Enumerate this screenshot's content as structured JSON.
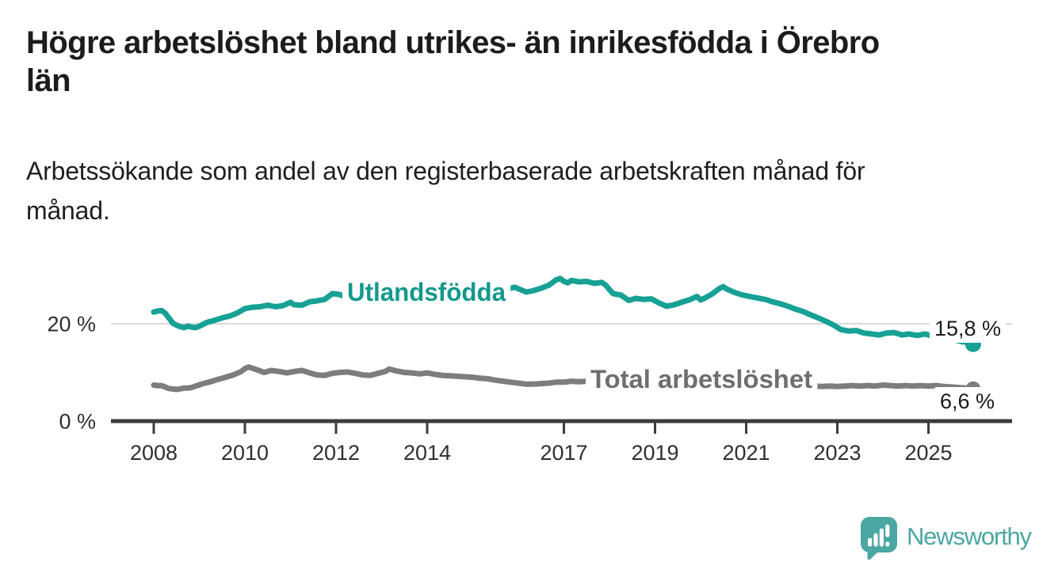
{
  "chart_data": {
    "type": "line",
    "title": "Högre arbetslöshet bland utrikes- än inrikesfödda i Örebro län",
    "title_lines": [
      "Högre arbetslöshet bland utrikes- än inrikesfödda i Örebro",
      "län"
    ],
    "subtitle": "Arbetssökande som andel av den registerbaserade arbetskraften månad för månad.",
    "subtitle_lines": [
      "Arbetssökande som andel av den registerbaserade arbetskraften månad för",
      "månad."
    ],
    "legend": "inline-labels",
    "grid": "horizontal-only",
    "axis_color": "#3c3c3c",
    "grid_color": "#dadada",
    "text_color": "#2f2f2f",
    "value_label_color": "#1a1a1a",
    "x_axis": {
      "unit": "year",
      "range": [
        2007.05,
        2026.9
      ],
      "ticks": [
        2008,
        2010,
        2012,
        2014,
        2017,
        2019,
        2021,
        2023,
        2025
      ]
    },
    "y_axis": {
      "unit": "%",
      "range": [
        0,
        33
      ],
      "ticks": [
        {
          "value": 0,
          "label": "0 %"
        },
        {
          "value": 20,
          "label": "20 %"
        }
      ],
      "gridlines": [
        20
      ]
    },
    "series": [
      {
        "name": "Utlandsfödda",
        "color": "#17a195",
        "label_color": "#14988d",
        "end_value": 15.8,
        "end_label": "15,8 %",
        "points": [
          [
            2008.0,
            22.4
          ],
          [
            2008.08,
            22.6
          ],
          [
            2008.17,
            22.7
          ],
          [
            2008.25,
            22.2
          ],
          [
            2008.33,
            21.2
          ],
          [
            2008.42,
            20.1
          ],
          [
            2008.5,
            19.7
          ],
          [
            2008.58,
            19.4
          ],
          [
            2008.67,
            19.2
          ],
          [
            2008.75,
            19.5
          ],
          [
            2008.83,
            19.3
          ],
          [
            2008.92,
            19.2
          ],
          [
            2009.0,
            19.5
          ],
          [
            2009.17,
            20.3
          ],
          [
            2009.33,
            20.7
          ],
          [
            2009.5,
            21.2
          ],
          [
            2009.67,
            21.6
          ],
          [
            2009.83,
            22.2
          ],
          [
            2010.0,
            23.1
          ],
          [
            2010.17,
            23.4
          ],
          [
            2010.33,
            23.5
          ],
          [
            2010.5,
            23.8
          ],
          [
            2010.67,
            23.5
          ],
          [
            2010.83,
            23.7
          ],
          [
            2011.0,
            24.4
          ],
          [
            2011.08,
            23.9
          ],
          [
            2011.25,
            23.8
          ],
          [
            2011.42,
            24.5
          ],
          [
            2011.58,
            24.7
          ],
          [
            2011.75,
            25.0
          ],
          [
            2011.92,
            26.2
          ],
          [
            2012.08,
            26.0
          ],
          [
            2012.25,
            25.3
          ],
          [
            2012.42,
            24.9
          ],
          [
            2012.58,
            24.8
          ],
          [
            2012.75,
            25.1
          ],
          [
            2012.92,
            25.7
          ],
          [
            2013.08,
            25.8
          ],
          [
            2013.25,
            25.4
          ],
          [
            2013.42,
            25.6
          ],
          [
            2013.58,
            25.8
          ],
          [
            2013.75,
            26.0
          ],
          [
            2013.92,
            26.1
          ],
          [
            2014.08,
            25.9
          ],
          [
            2014.25,
            26.0
          ],
          [
            2014.42,
            26.2
          ],
          [
            2014.58,
            26.3
          ],
          [
            2014.75,
            26.4
          ],
          [
            2014.92,
            26.6
          ],
          [
            2015.08,
            26.4
          ],
          [
            2015.25,
            26.3
          ],
          [
            2015.42,
            26.6
          ],
          [
            2015.58,
            26.8
          ],
          [
            2015.75,
            27.1
          ],
          [
            2015.92,
            27.5
          ],
          [
            2016.08,
            26.9
          ],
          [
            2016.17,
            26.5
          ],
          [
            2016.33,
            26.8
          ],
          [
            2016.5,
            27.3
          ],
          [
            2016.67,
            27.9
          ],
          [
            2016.83,
            29.0
          ],
          [
            2016.92,
            29.3
          ],
          [
            2017.0,
            28.7
          ],
          [
            2017.08,
            28.4
          ],
          [
            2017.17,
            28.9
          ],
          [
            2017.33,
            28.6
          ],
          [
            2017.5,
            28.7
          ],
          [
            2017.67,
            28.3
          ],
          [
            2017.83,
            28.5
          ],
          [
            2017.92,
            27.9
          ],
          [
            2018.0,
            27.0
          ],
          [
            2018.08,
            26.2
          ],
          [
            2018.25,
            25.9
          ],
          [
            2018.42,
            24.8
          ],
          [
            2018.58,
            25.2
          ],
          [
            2018.75,
            25.0
          ],
          [
            2018.92,
            25.1
          ],
          [
            2019.08,
            24.3
          ],
          [
            2019.25,
            23.6
          ],
          [
            2019.42,
            23.9
          ],
          [
            2019.58,
            24.4
          ],
          [
            2019.75,
            24.9
          ],
          [
            2019.92,
            25.6
          ],
          [
            2020.0,
            24.9
          ],
          [
            2020.08,
            25.2
          ],
          [
            2020.25,
            26.1
          ],
          [
            2020.42,
            27.3
          ],
          [
            2020.5,
            27.6
          ],
          [
            2020.58,
            27.1
          ],
          [
            2020.75,
            26.4
          ],
          [
            2020.92,
            25.9
          ],
          [
            2021.08,
            25.6
          ],
          [
            2021.25,
            25.3
          ],
          [
            2021.42,
            25.0
          ],
          [
            2021.58,
            24.5
          ],
          [
            2021.75,
            24.1
          ],
          [
            2021.92,
            23.6
          ],
          [
            2022.08,
            23.0
          ],
          [
            2022.25,
            22.5
          ],
          [
            2022.42,
            21.8
          ],
          [
            2022.58,
            21.2
          ],
          [
            2022.75,
            20.5
          ],
          [
            2022.92,
            19.7
          ],
          [
            2023.08,
            18.8
          ],
          [
            2023.25,
            18.5
          ],
          [
            2023.42,
            18.6
          ],
          [
            2023.58,
            18.1
          ],
          [
            2023.75,
            17.9
          ],
          [
            2023.92,
            17.7
          ],
          [
            2024.08,
            18.1
          ],
          [
            2024.25,
            18.2
          ],
          [
            2024.42,
            17.7
          ],
          [
            2024.58,
            17.9
          ],
          [
            2024.75,
            17.6
          ],
          [
            2024.92,
            17.9
          ],
          [
            2025.08,
            17.5
          ],
          [
            2025.25,
            17.3
          ],
          [
            2025.42,
            17.0
          ],
          [
            2025.58,
            16.7
          ],
          [
            2025.75,
            16.3
          ],
          [
            2025.9,
            16.2
          ],
          [
            2025.98,
            15.8
          ]
        ]
      },
      {
        "name": "Total arbetslöshet",
        "color": "#7d7d7d",
        "label_color": "#6e6e6e",
        "end_value": 6.6,
        "end_label": "6,6 %",
        "points": [
          [
            2008.0,
            7.4
          ],
          [
            2008.08,
            7.3
          ],
          [
            2008.17,
            7.3
          ],
          [
            2008.25,
            7.0
          ],
          [
            2008.33,
            6.7
          ],
          [
            2008.42,
            6.6
          ],
          [
            2008.5,
            6.5
          ],
          [
            2008.58,
            6.6
          ],
          [
            2008.67,
            6.8
          ],
          [
            2008.75,
            6.8
          ],
          [
            2008.83,
            6.9
          ],
          [
            2008.92,
            7.2
          ],
          [
            2009.08,
            7.7
          ],
          [
            2009.25,
            8.1
          ],
          [
            2009.42,
            8.6
          ],
          [
            2009.58,
            9.0
          ],
          [
            2009.75,
            9.5
          ],
          [
            2009.92,
            10.2
          ],
          [
            2010.0,
            10.8
          ],
          [
            2010.08,
            11.1
          ],
          [
            2010.25,
            10.6
          ],
          [
            2010.42,
            10.0
          ],
          [
            2010.58,
            10.4
          ],
          [
            2010.75,
            10.2
          ],
          [
            2010.92,
            9.9
          ],
          [
            2011.08,
            10.2
          ],
          [
            2011.25,
            10.4
          ],
          [
            2011.42,
            9.9
          ],
          [
            2011.58,
            9.5
          ],
          [
            2011.75,
            9.4
          ],
          [
            2011.92,
            9.8
          ],
          [
            2012.08,
            10.0
          ],
          [
            2012.25,
            10.1
          ],
          [
            2012.42,
            9.8
          ],
          [
            2012.58,
            9.5
          ],
          [
            2012.75,
            9.4
          ],
          [
            2012.92,
            9.8
          ],
          [
            2013.08,
            10.2
          ],
          [
            2013.17,
            10.7
          ],
          [
            2013.33,
            10.3
          ],
          [
            2013.5,
            10.0
          ],
          [
            2013.67,
            9.9
          ],
          [
            2013.83,
            9.7
          ],
          [
            2014.0,
            9.9
          ],
          [
            2014.17,
            9.6
          ],
          [
            2014.33,
            9.4
          ],
          [
            2014.5,
            9.3
          ],
          [
            2014.67,
            9.2
          ],
          [
            2014.83,
            9.1
          ],
          [
            2015.0,
            9.0
          ],
          [
            2015.17,
            8.8
          ],
          [
            2015.33,
            8.7
          ],
          [
            2015.5,
            8.4
          ],
          [
            2015.67,
            8.2
          ],
          [
            2015.83,
            8.0
          ],
          [
            2016.0,
            7.8
          ],
          [
            2016.17,
            7.6
          ],
          [
            2016.33,
            7.6
          ],
          [
            2016.5,
            7.7
          ],
          [
            2016.67,
            7.8
          ],
          [
            2016.83,
            8.0
          ],
          [
            2017.0,
            8.0
          ],
          [
            2017.17,
            8.2
          ],
          [
            2017.33,
            8.1
          ],
          [
            2017.5,
            8.2
          ],
          [
            2017.67,
            8.1
          ],
          [
            2017.83,
            8.0
          ],
          [
            2018.0,
            8.1
          ],
          [
            2018.17,
            8.0
          ],
          [
            2018.33,
            7.9
          ],
          [
            2018.5,
            7.8
          ],
          [
            2018.67,
            7.9
          ],
          [
            2018.83,
            7.8
          ],
          [
            2019.0,
            8.0
          ],
          [
            2019.17,
            7.9
          ],
          [
            2019.33,
            7.8
          ],
          [
            2019.5,
            7.7
          ],
          [
            2019.67,
            7.8
          ],
          [
            2019.83,
            7.9
          ],
          [
            2020.0,
            8.1
          ],
          [
            2020.17,
            8.5
          ],
          [
            2020.33,
            9.0
          ],
          [
            2020.5,
            9.3
          ],
          [
            2020.67,
            9.1
          ],
          [
            2020.83,
            8.9
          ],
          [
            2021.0,
            8.8
          ],
          [
            2021.17,
            8.6
          ],
          [
            2021.33,
            8.4
          ],
          [
            2021.5,
            8.1
          ],
          [
            2021.67,
            7.9
          ],
          [
            2021.83,
            7.8
          ],
          [
            2022.0,
            7.7
          ],
          [
            2022.17,
            7.5
          ],
          [
            2022.33,
            7.3
          ],
          [
            2022.5,
            7.2
          ],
          [
            2022.67,
            7.1
          ],
          [
            2022.83,
            7.2
          ],
          [
            2023.0,
            7.1
          ],
          [
            2023.17,
            7.2
          ],
          [
            2023.33,
            7.3
          ],
          [
            2023.5,
            7.2
          ],
          [
            2023.67,
            7.3
          ],
          [
            2023.83,
            7.2
          ],
          [
            2024.0,
            7.4
          ],
          [
            2024.17,
            7.3
          ],
          [
            2024.33,
            7.2
          ],
          [
            2024.5,
            7.3
          ],
          [
            2024.67,
            7.2
          ],
          [
            2024.83,
            7.3
          ],
          [
            2025.0,
            7.2
          ],
          [
            2025.17,
            7.3
          ],
          [
            2025.33,
            7.1
          ],
          [
            2025.5,
            7.0
          ],
          [
            2025.67,
            6.9
          ],
          [
            2025.83,
            6.8
          ],
          [
            2025.98,
            6.6
          ]
        ]
      }
    ]
  },
  "footer": {
    "brand": "Newsworthy",
    "brand_color": "#4ba7a1",
    "logo_icon": "bar-chart-speech-bubble"
  }
}
